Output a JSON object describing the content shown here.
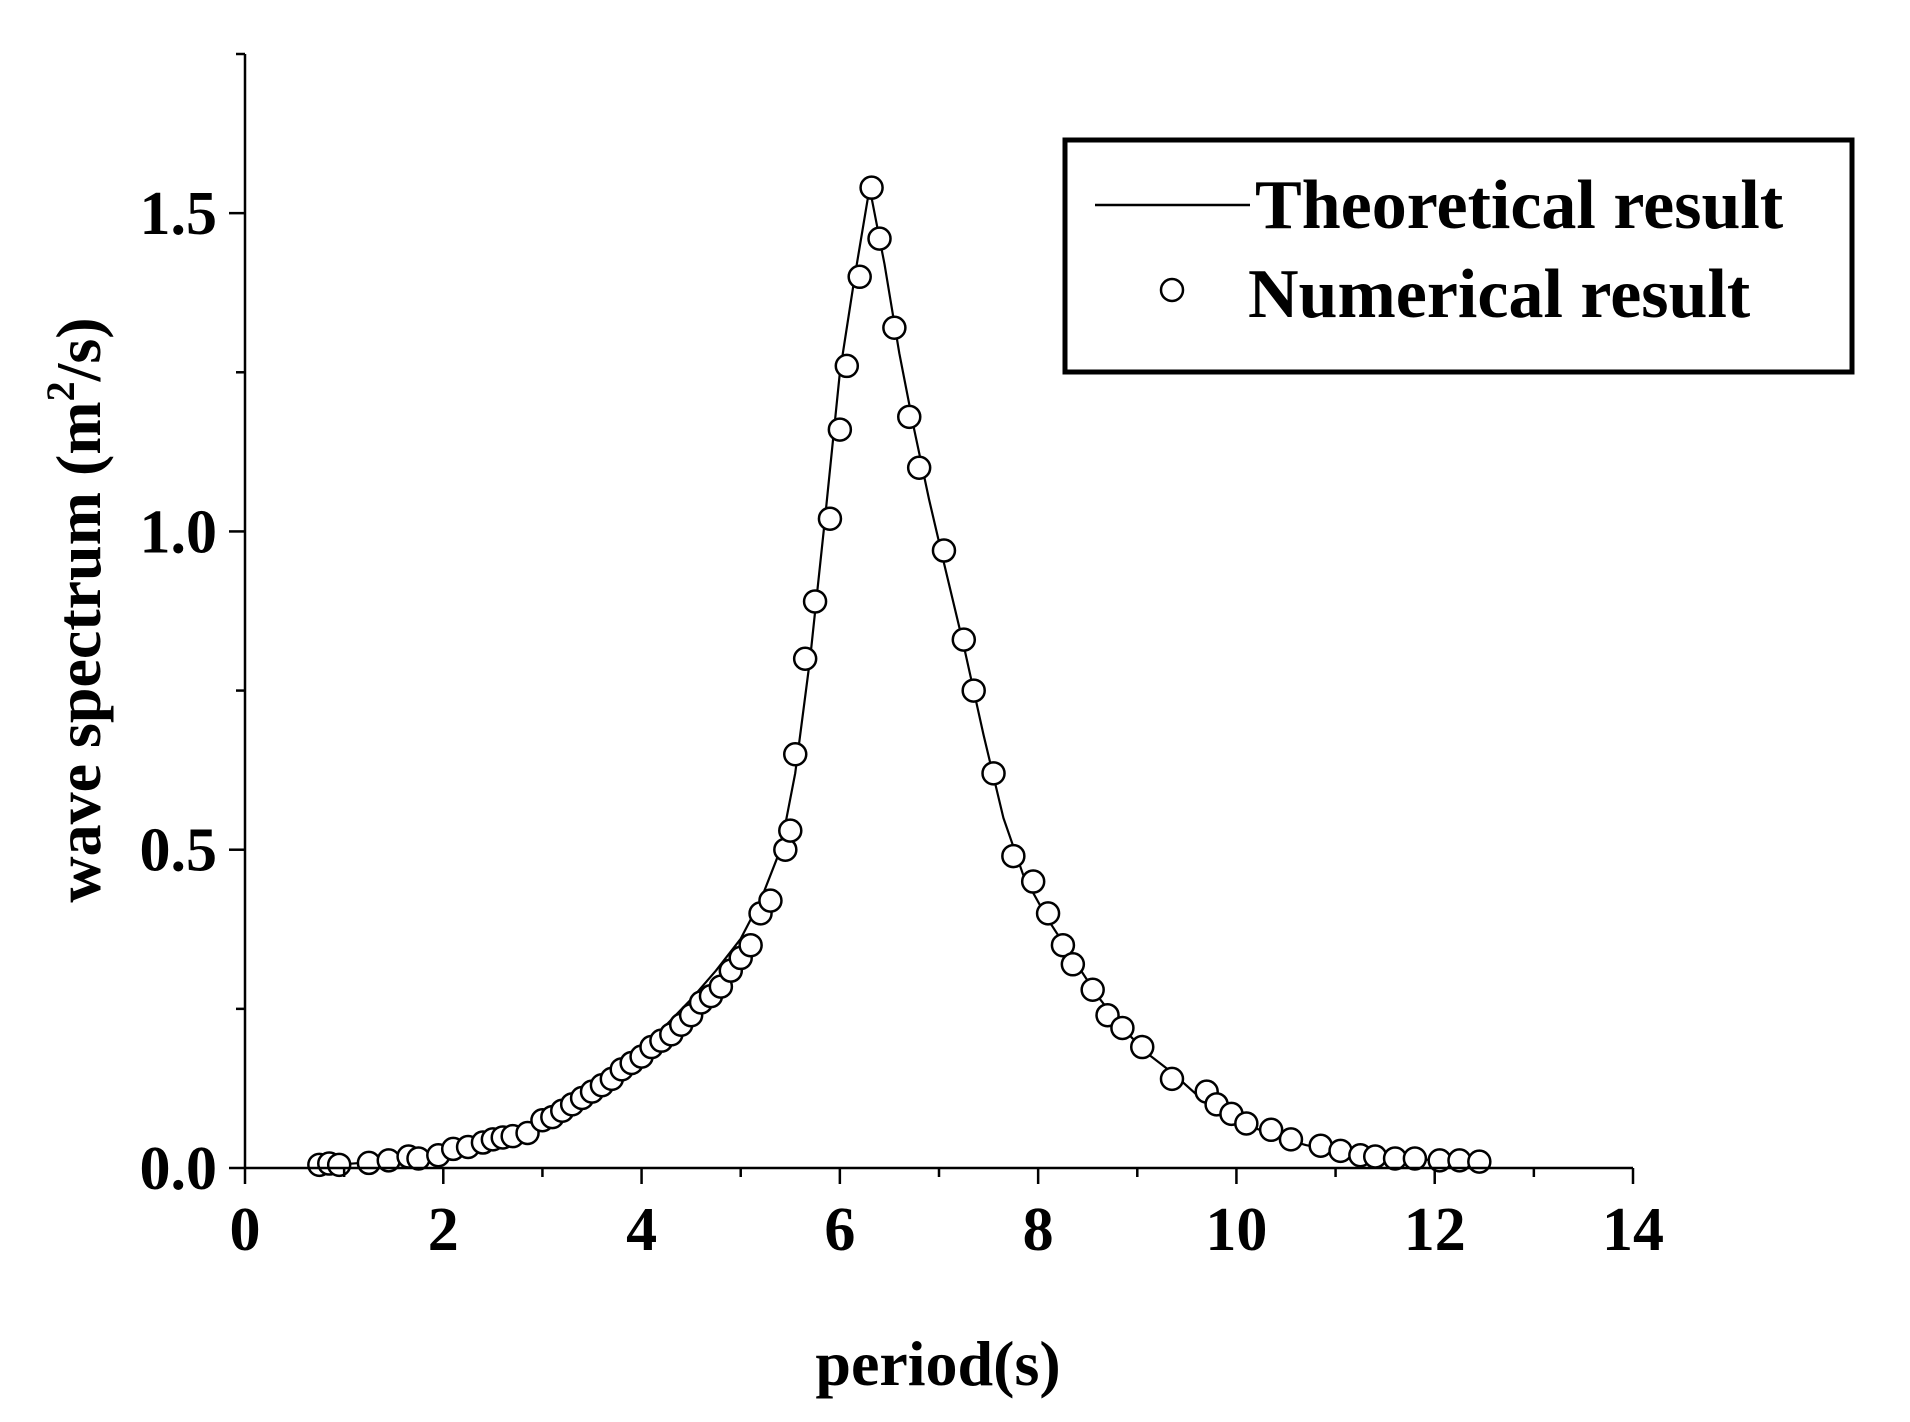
{
  "chart_data": {
    "type": "line",
    "title": "",
    "xlabel": "period(s)",
    "ylabel": "wave spectrum (m",
    "ylabel_superscript": "2",
    "ylabel_suffix": "/s)",
    "xlim": [
      0,
      14
    ],
    "ylim": [
      0,
      1.75
    ],
    "xticks": [
      0,
      2,
      4,
      6,
      8,
      10,
      12,
      14
    ],
    "xtick_labels": [
      "0",
      "2",
      "4",
      "6",
      "8",
      "10",
      "12",
      "14"
    ],
    "yticks": [
      0.0,
      0.5,
      1.0,
      1.5
    ],
    "ytick_labels": [
      "0.0",
      "0.5",
      "1.0",
      "1.5"
    ],
    "grid": false,
    "legend_position": "top-right",
    "series": [
      {
        "name": "Theoretical result",
        "style": "line",
        "color": "#000000",
        "x": [
          0.75,
          1.0,
          1.25,
          1.5,
          1.75,
          2.0,
          2.25,
          2.5,
          2.75,
          3.0,
          3.25,
          3.5,
          3.75,
          4.0,
          4.25,
          4.5,
          4.75,
          5.0,
          5.2,
          5.4,
          5.55,
          5.7,
          5.85,
          6.0,
          6.15,
          6.3,
          6.45,
          6.6,
          6.75,
          6.9,
          7.05,
          7.25,
          7.45,
          7.65,
          7.85,
          8.1,
          8.35,
          8.6,
          8.85,
          9.1,
          9.35,
          9.6,
          9.85,
          10.1,
          10.4,
          10.7,
          11.0,
          11.3,
          11.6,
          11.9,
          12.2,
          12.45
        ],
        "y": [
          0.003,
          0.006,
          0.009,
          0.013,
          0.018,
          0.024,
          0.032,
          0.042,
          0.055,
          0.075,
          0.1,
          0.13,
          0.16,
          0.19,
          0.225,
          0.265,
          0.31,
          0.36,
          0.42,
          0.5,
          0.62,
          0.8,
          1.02,
          1.25,
          1.4,
          1.54,
          1.42,
          1.28,
          1.16,
          1.05,
          0.95,
          0.82,
          0.68,
          0.55,
          0.46,
          0.39,
          0.33,
          0.27,
          0.22,
          0.18,
          0.15,
          0.115,
          0.09,
          0.068,
          0.05,
          0.036,
          0.026,
          0.02,
          0.016,
          0.013,
          0.011,
          0.01
        ]
      },
      {
        "name": "Numerical result",
        "style": "marker",
        "marker": "circle-open",
        "color": "#000000",
        "x": [
          0.75,
          0.85,
          0.95,
          1.25,
          1.45,
          1.65,
          1.75,
          1.95,
          2.1,
          2.25,
          2.4,
          2.5,
          2.6,
          2.7,
          2.85,
          3.0,
          3.1,
          3.2,
          3.3,
          3.4,
          3.5,
          3.6,
          3.7,
          3.8,
          3.9,
          4.0,
          4.1,
          4.2,
          4.3,
          4.4,
          4.5,
          4.6,
          4.7,
          4.8,
          4.9,
          5.0,
          5.1,
          5.2,
          5.3,
          5.45,
          5.5,
          5.55,
          5.65,
          5.75,
          5.9,
          6.0,
          6.07,
          6.2,
          6.32,
          6.4,
          6.55,
          6.7,
          6.8,
          7.05,
          7.25,
          7.35,
          7.55,
          7.75,
          7.95,
          8.1,
          8.25,
          8.35,
          8.55,
          8.7,
          8.85,
          9.05,
          9.35,
          9.7,
          9.8,
          9.95,
          10.1,
          10.35,
          10.55,
          10.85,
          11.05,
          11.25,
          11.4,
          11.6,
          11.8,
          12.05,
          12.25,
          12.45
        ],
        "y": [
          0.005,
          0.007,
          0.005,
          0.008,
          0.012,
          0.018,
          0.015,
          0.02,
          0.03,
          0.033,
          0.04,
          0.045,
          0.048,
          0.05,
          0.055,
          0.075,
          0.08,
          0.09,
          0.1,
          0.11,
          0.12,
          0.13,
          0.14,
          0.155,
          0.165,
          0.175,
          0.19,
          0.2,
          0.21,
          0.225,
          0.24,
          0.26,
          0.27,
          0.285,
          0.31,
          0.33,
          0.35,
          0.4,
          0.42,
          0.5,
          0.53,
          0.65,
          0.8,
          0.89,
          1.02,
          1.16,
          1.26,
          1.4,
          1.54,
          1.46,
          1.32,
          1.18,
          1.1,
          0.97,
          0.83,
          0.75,
          0.62,
          0.49,
          0.45,
          0.4,
          0.35,
          0.32,
          0.28,
          0.24,
          0.22,
          0.19,
          0.14,
          0.12,
          0.1,
          0.085,
          0.07,
          0.06,
          0.045,
          0.035,
          0.027,
          0.02,
          0.018,
          0.015,
          0.015,
          0.012,
          0.012,
          0.01
        ]
      }
    ]
  }
}
